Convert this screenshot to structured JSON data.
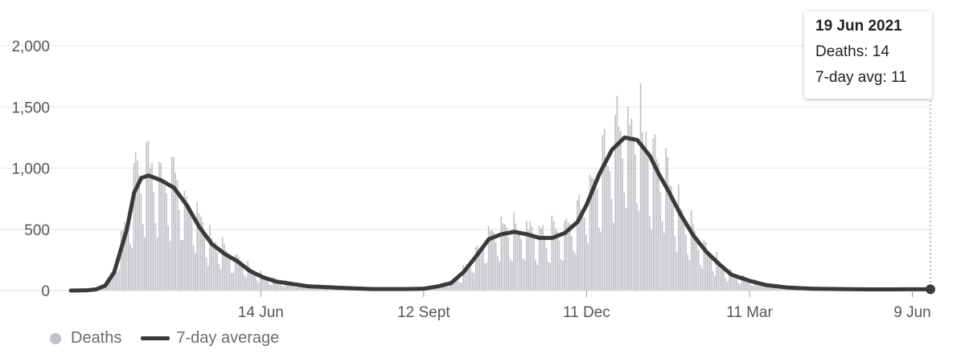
{
  "chart_data": {
    "type": "bar",
    "y_ticks": [
      0,
      500,
      1000,
      1500,
      2000
    ],
    "y_tick_labels": [
      "0",
      "500",
      "1,000",
      "1,500",
      "2,000"
    ],
    "ylim": [
      0,
      2000
    ],
    "x_tick_labels": [
      "14 Jun",
      "12 Sept",
      "11 Dec",
      "11 Mar",
      "9 Jun"
    ],
    "series": [
      {
        "name": "Deaths",
        "color": "#bfc1c6",
        "kind": "bar",
        "description": "daily values; approximately 1,820 at peak (Jan 2021), about 1,220 in April 2020"
      },
      {
        "name": "7-day average",
        "color": "#3a3a3a",
        "kind": "line",
        "x": [
          "2020-03-01",
          "2020-03-10",
          "2020-03-15",
          "2020-03-20",
          "2020-03-25",
          "2020-04-01",
          "2020-04-05",
          "2020-04-09",
          "2020-04-13",
          "2020-04-20",
          "2020-04-27",
          "2020-05-04",
          "2020-05-11",
          "2020-05-18",
          "2020-05-25",
          "2020-06-01",
          "2020-06-08",
          "2020-06-15",
          "2020-06-22",
          "2020-07-01",
          "2020-07-10",
          "2020-07-20",
          "2020-08-01",
          "2020-08-15",
          "2020-09-01",
          "2020-09-12",
          "2020-09-20",
          "2020-09-27",
          "2020-10-04",
          "2020-10-11",
          "2020-10-18",
          "2020-10-25",
          "2020-11-01",
          "2020-11-08",
          "2020-11-15",
          "2020-11-22",
          "2020-11-29",
          "2020-12-06",
          "2020-12-11",
          "2020-12-18",
          "2020-12-25",
          "2021-01-01",
          "2021-01-08",
          "2021-01-15",
          "2021-01-20",
          "2021-01-25",
          "2021-02-01",
          "2021-02-08",
          "2021-02-15",
          "2021-02-22",
          "2021-03-01",
          "2021-03-11",
          "2021-03-20",
          "2021-04-01",
          "2021-04-15",
          "2021-05-01",
          "2021-05-15",
          "2021-06-01",
          "2021-06-10",
          "2021-06-19"
        ],
        "values": [
          0,
          2,
          10,
          40,
          150,
          500,
          800,
          920,
          940,
          900,
          840,
          700,
          520,
          380,
          300,
          240,
          160,
          110,
          75,
          55,
          35,
          28,
          20,
          12,
          12,
          15,
          35,
          60,
          150,
          280,
          420,
          460,
          480,
          460,
          430,
          430,
          470,
          560,
          700,
          950,
          1150,
          1250,
          1230,
          1100,
          950,
          820,
          620,
          450,
          320,
          220,
          130,
          80,
          45,
          25,
          15,
          12,
          10,
          10,
          11,
          11
        ]
      }
    ],
    "tooltip": {
      "date": "19 Jun 2021",
      "deaths_label": "Deaths: 14",
      "avg_label": "7-day avg: 11"
    }
  },
  "legend": {
    "deaths_label": "Deaths",
    "avg_label": "7-day average"
  }
}
